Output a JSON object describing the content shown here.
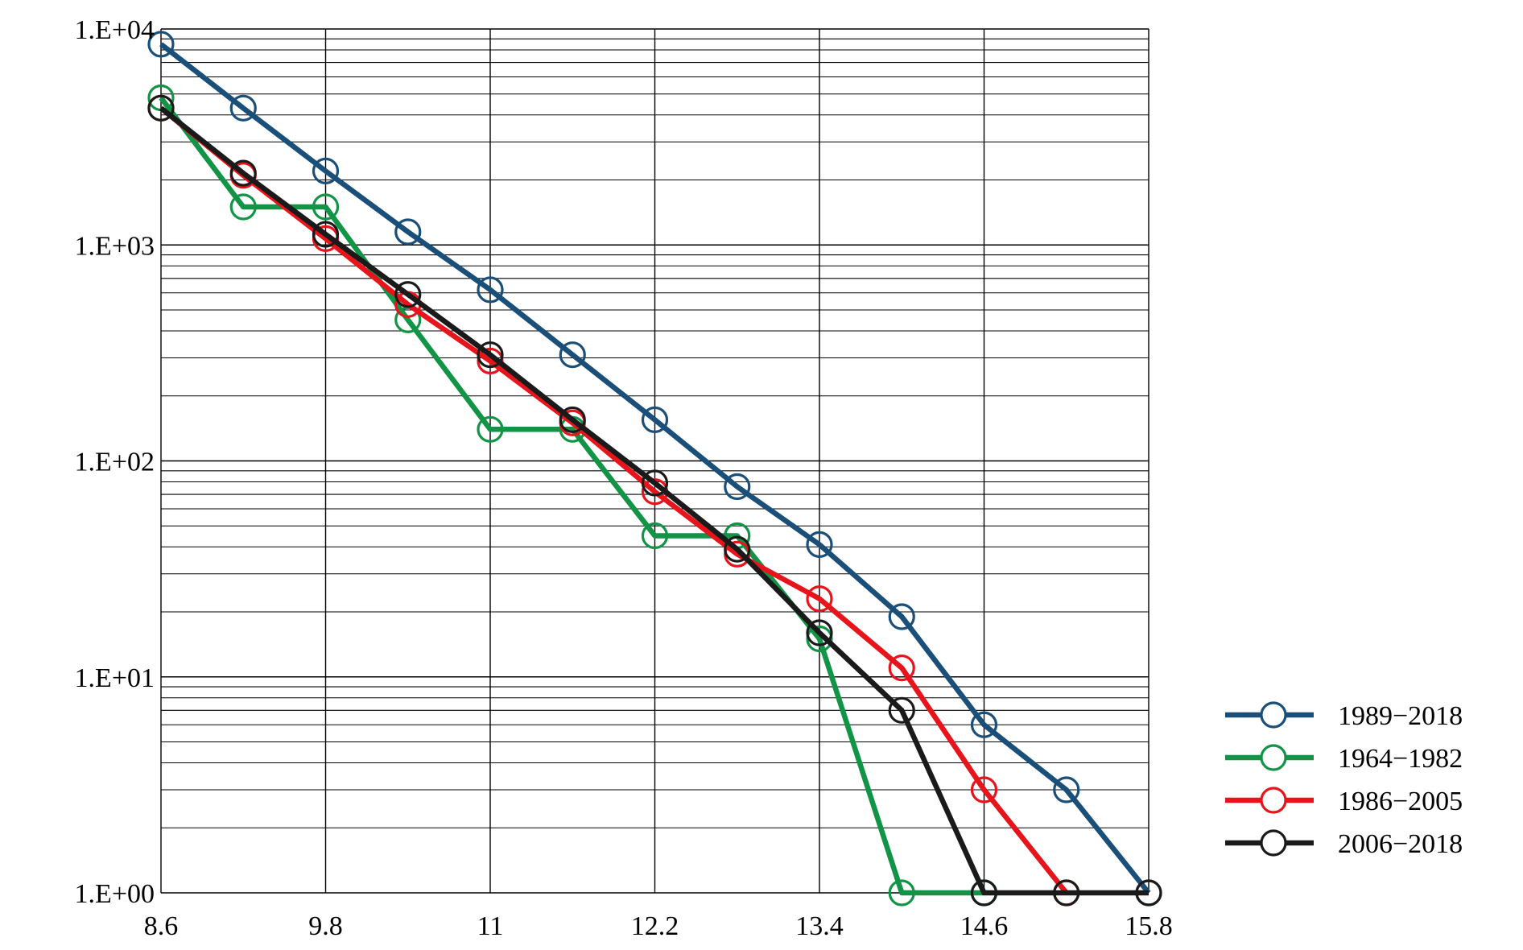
{
  "chart_data": {
    "type": "line",
    "x_scale": "linear",
    "y_scale": "log",
    "xlim": [
      8.6,
      15.8
    ],
    "ylim": [
      1,
      10000
    ],
    "x_ticks": [
      8.6,
      9.8,
      11,
      12.2,
      13.4,
      14.6,
      15.8
    ],
    "x_tick_labels": [
      "8.6",
      "9.8",
      "11",
      "12.2",
      "13.4",
      "14.6",
      "15.8"
    ],
    "y_ticks": [
      1,
      10,
      100,
      1000,
      10000
    ],
    "y_tick_labels": [
      "1.E+00",
      "1.E+01",
      "1.E+02",
      "1.E+03",
      "1.E+04"
    ],
    "grid": true,
    "legend_position": "bottom-right",
    "series": [
      {
        "name": "1989−2018",
        "color": "#1a4f7a",
        "x": [
          8.6,
          9.2,
          9.8,
          10.4,
          11.0,
          11.6,
          12.2,
          12.8,
          13.4,
          14.0,
          14.6,
          15.2,
          15.8
        ],
        "y": [
          8500,
          4300,
          2200,
          1150,
          620,
          310,
          155,
          76,
          41,
          19,
          6,
          3,
          1
        ]
      },
      {
        "name": "1964−1982",
        "color": "#129447",
        "x": [
          8.6,
          9.2,
          9.8,
          10.4,
          11.0,
          11.6,
          12.2,
          12.8,
          13.4,
          14.0,
          14.6
        ],
        "y": [
          4800,
          1500,
          1500,
          450,
          140,
          140,
          45,
          45,
          15,
          1,
          1
        ]
      },
      {
        "name": "1986−2005",
        "color": "#e8141b",
        "x": [
          8.6,
          9.2,
          9.8,
          10.4,
          11.0,
          11.6,
          12.2,
          12.8,
          13.4,
          14.0,
          14.6,
          15.2
        ],
        "y": [
          4300,
          2100,
          1070,
          530,
          290,
          150,
          72,
          37,
          23,
          11,
          3,
          1
        ]
      },
      {
        "name": "2006−2018",
        "color": "#1a1a1a",
        "x": [
          8.6,
          9.2,
          9.8,
          10.4,
          11.0,
          11.6,
          12.2,
          12.8,
          13.4,
          14.0,
          14.6,
          15.2,
          15.8
        ],
        "y": [
          4300,
          2150,
          1120,
          590,
          310,
          155,
          79,
          39,
          16,
          7,
          1,
          1,
          1
        ]
      }
    ]
  }
}
